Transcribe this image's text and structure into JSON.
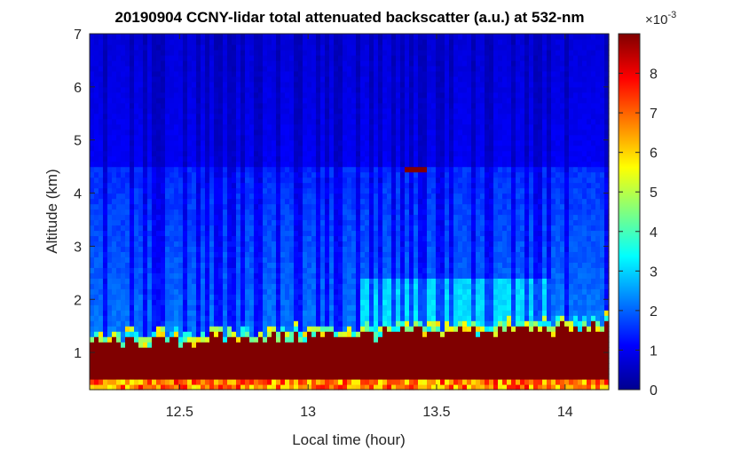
{
  "chart_data": {
    "type": "heatmap",
    "title": "20190904 CCNY-lidar total attenuated backscatter (a.u.) at 532-nm",
    "xlabel": "Local time (hour)",
    "ylabel": "Altitude (km)",
    "xlim": [
      12.15,
      14.17
    ],
    "ylim": [
      0.3,
      7
    ],
    "x_ticks": [
      "12.5",
      "13",
      "13.5",
      "14"
    ],
    "x_tick_values": [
      12.5,
      13,
      13.5,
      14
    ],
    "y_ticks": [
      "1",
      "2",
      "3",
      "4",
      "5",
      "6",
      "7"
    ],
    "y_tick_values": [
      1,
      2,
      3,
      4,
      5,
      6,
      7
    ],
    "colorbar": {
      "label": "",
      "multiplier": "×10",
      "multiplier_exponent": "-3",
      "range": [
        0,
        9
      ],
      "ticks": [
        "0",
        "1",
        "2",
        "3",
        "4",
        "5",
        "6",
        "7",
        "8"
      ],
      "tick_values": [
        0,
        1,
        2,
        3,
        4,
        5,
        6,
        7,
        8
      ],
      "colormap": "jet"
    },
    "features": {
      "boundary_layer_top_km": [
        1.05,
        1.4
      ],
      "residual_layer_top_km": 4.5,
      "cloud_at": {
        "time": 13.42,
        "altitude_km": 4.45
      }
    }
  }
}
